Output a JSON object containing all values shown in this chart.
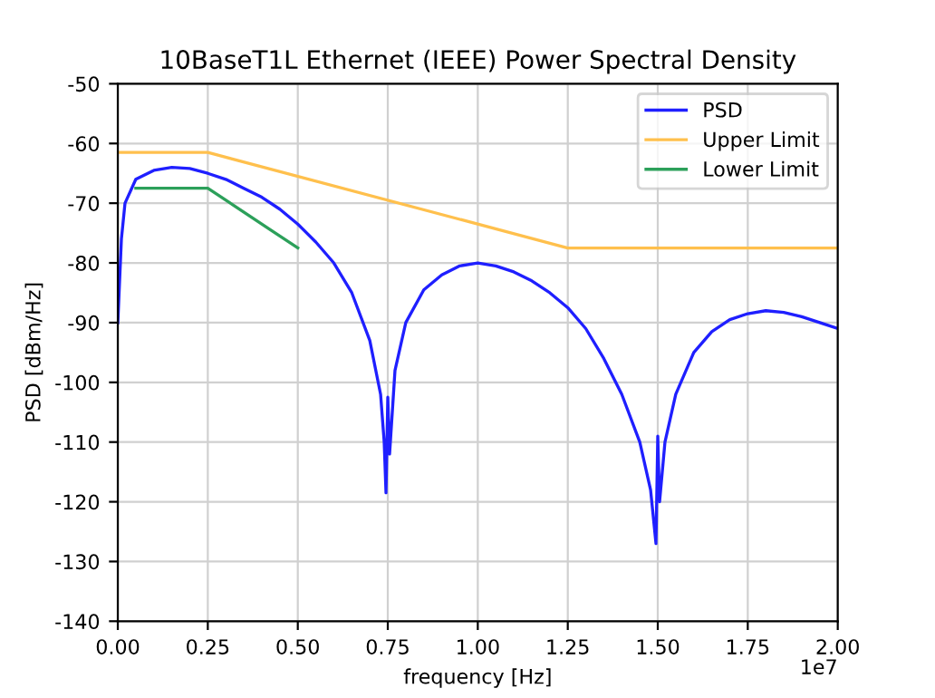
{
  "chart_data": {
    "type": "line",
    "title": "10BaseT1L Ethernet (IEEE) Power Spectral Density",
    "xlabel": "frequency [Hz]",
    "ylabel": "PSD [dBm/Hz]",
    "annotations": [
      "1e7"
    ],
    "series": [
      {
        "name": "PSD",
        "color": "#1f1fff",
        "x": [
          0,
          0.01,
          0.02,
          0.05,
          0.1,
          0.15,
          0.2,
          0.25,
          0.3,
          0.35,
          0.4,
          0.45,
          0.5,
          0.55,
          0.6,
          0.65,
          0.7,
          0.73,
          0.74,
          0.745,
          0.75,
          0.755,
          0.77,
          0.8,
          0.85,
          0.9,
          0.95,
          1.0,
          1.05,
          1.1,
          1.15,
          1.2,
          1.25,
          1.3,
          1.35,
          1.4,
          1.45,
          1.48,
          1.495,
          1.5,
          1.505,
          1.52,
          1.55,
          1.6,
          1.65,
          1.7,
          1.75,
          1.8,
          1.85,
          1.9,
          1.95,
          2.0
        ],
        "values": [
          -90,
          -76,
          -70,
          -66,
          -64.5,
          -64,
          -64.2,
          -65,
          -66,
          -67.5,
          -69,
          -71,
          -73.5,
          -76.5,
          -80,
          -85,
          -93,
          -102,
          -110,
          -118.5,
          -102.5,
          -112,
          -98,
          -90,
          -84.5,
          -82,
          -80.5,
          -80,
          -80.5,
          -81.5,
          -83,
          -85,
          -87.5,
          -91,
          -96,
          -102,
          -110,
          -118,
          -127,
          -109,
          -120,
          -110,
          -102,
          -95,
          -91.5,
          -89.5,
          -88.5,
          -88,
          -88.3,
          -89,
          -90,
          -91
        ]
      },
      {
        "name": "Upper Limit",
        "color": "#ffc04d",
        "x": [
          0,
          0.25,
          1.25,
          2.0
        ],
        "values": [
          -61.5,
          -61.5,
          -77.5,
          -77.5
        ]
      },
      {
        "name": "Lower Limit",
        "color": "#2ca05a",
        "x": [
          0.05,
          0.25,
          0.5
        ],
        "values": [
          -67.5,
          -67.5,
          -77.5
        ]
      }
    ],
    "xlim": [
      0,
      2.0
    ],
    "ylim": [
      -140,
      -50
    ],
    "xticks": [
      {
        "value": 0,
        "label": "0.00"
      },
      0.25,
      {
        "value": 0.5,
        "label": "0.50"
      },
      0.75,
      {
        "value": 1,
        "label": "1.00"
      },
      1.25,
      {
        "value": 1.5,
        "label": "1.50"
      },
      1.75,
      {
        "value": 2,
        "label": "2.00"
      }
    ],
    "yticks": [
      -140,
      -130,
      -120,
      -110,
      -100,
      -90,
      -80,
      -70,
      -60,
      -50
    ],
    "grid": true,
    "legend": "top right",
    "marker": "none",
    "line_style": "solid"
  }
}
